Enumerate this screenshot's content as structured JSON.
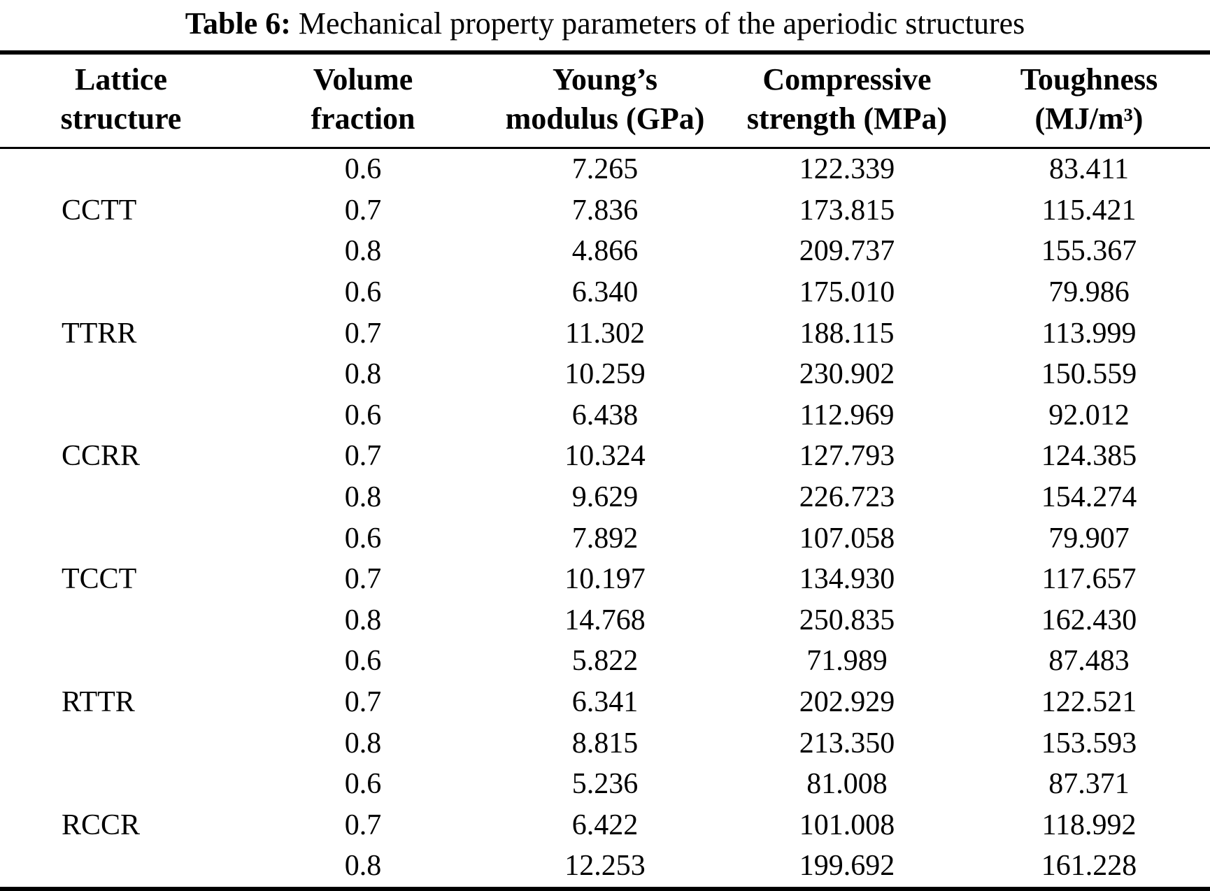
{
  "caption": {
    "label": "Table 6:",
    "text": "Mechanical property parameters of the aperiodic structures"
  },
  "table": {
    "headers": [
      {
        "line1": "Lattice",
        "line2": "structure"
      },
      {
        "line1": "Volume",
        "line2": "fraction"
      },
      {
        "line1": "Young’s",
        "line2": "modulus (GPa)"
      },
      {
        "line1": "Compressive",
        "line2": "strength (MPa)"
      },
      {
        "line1": "Toughness",
        "line2": "(MJ/m³)"
      }
    ],
    "column_keys": [
      "volume_fraction",
      "youngs_modulus_gpa",
      "compressive_strength_mpa",
      "toughness_mj_m3"
    ],
    "groups": [
      {
        "lattice": "CCTT",
        "rows": [
          [
            "0.6",
            "7.265",
            "122.339",
            "83.411"
          ],
          [
            "0.7",
            "7.836",
            "173.815",
            "115.421"
          ],
          [
            "0.8",
            "4.866",
            "209.737",
            "155.367"
          ]
        ]
      },
      {
        "lattice": "TTRR",
        "rows": [
          [
            "0.6",
            "6.340",
            "175.010",
            "79.986"
          ],
          [
            "0.7",
            "11.302",
            "188.115",
            "113.999"
          ],
          [
            "0.8",
            "10.259",
            "230.902",
            "150.559"
          ]
        ]
      },
      {
        "lattice": "CCRR",
        "rows": [
          [
            "0.6",
            "6.438",
            "112.969",
            "92.012"
          ],
          [
            "0.7",
            "10.324",
            "127.793",
            "124.385"
          ],
          [
            "0.8",
            "9.629",
            "226.723",
            "154.274"
          ]
        ]
      },
      {
        "lattice": "TCCT",
        "rows": [
          [
            "0.6",
            "7.892",
            "107.058",
            "79.907"
          ],
          [
            "0.7",
            "10.197",
            "134.930",
            "117.657"
          ],
          [
            "0.8",
            "14.768",
            "250.835",
            "162.430"
          ]
        ]
      },
      {
        "lattice": "RTTR",
        "rows": [
          [
            "0.6",
            "5.822",
            "71.989",
            "87.483"
          ],
          [
            "0.7",
            "6.341",
            "202.929",
            "122.521"
          ],
          [
            "0.8",
            "8.815",
            "213.350",
            "153.593"
          ]
        ]
      },
      {
        "lattice": "RCCR",
        "rows": [
          [
            "0.6",
            "5.236",
            "81.008",
            "87.371"
          ],
          [
            "0.7",
            "6.422",
            "101.008",
            "118.992"
          ],
          [
            "0.8",
            "12.253",
            "199.692",
            "161.228"
          ]
        ]
      }
    ]
  }
}
